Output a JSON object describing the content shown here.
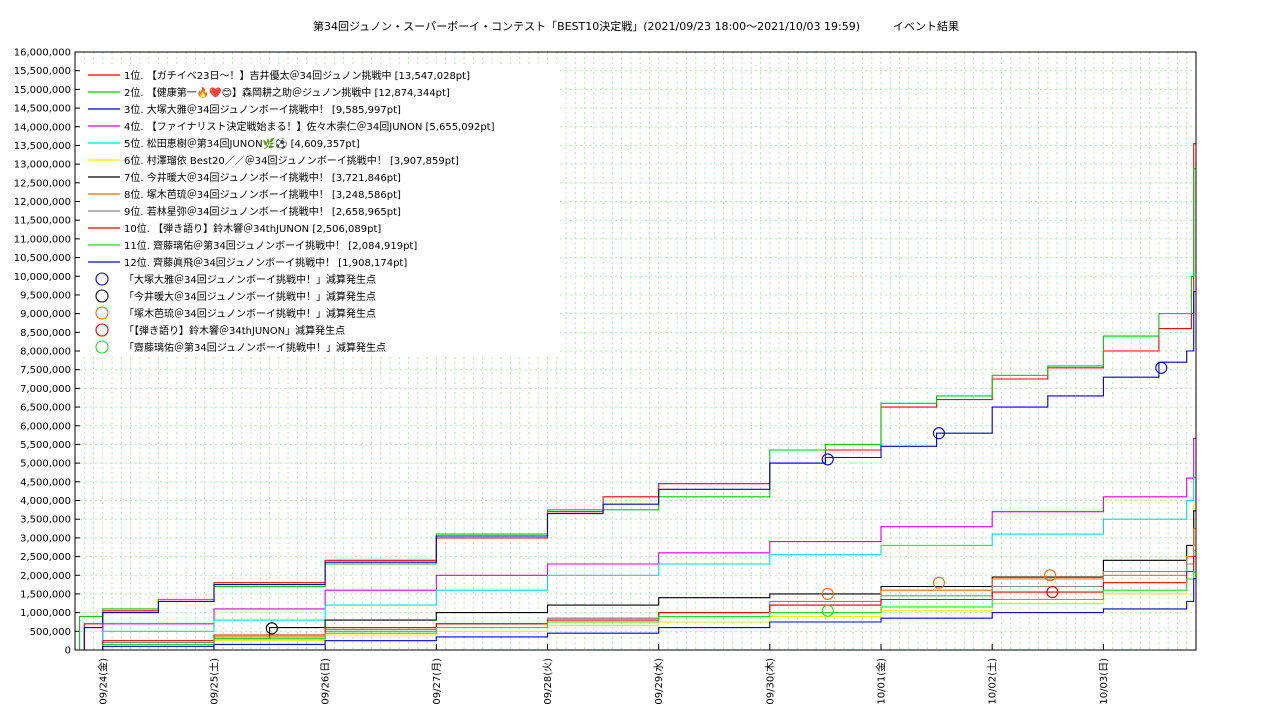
{
  "chart_data": {
    "type": "line",
    "title": "第34回ジュノン・スーパーボーイ・コンテスト「BEST10決定戦」(2021/09/23 18:00〜2021/10/03 19:59)　　　イベント結果",
    "xlabel": "",
    "ylabel": "",
    "x_ticks": [
      "09/24(金)",
      "09/25(土)",
      "09/26(日)",
      "09/27(月)",
      "09/28(火)",
      "09/29(水)",
      "09/30(木)",
      "10/01(金)",
      "10/02(土)",
      "10/03(日)"
    ],
    "xlim": [
      "2021-09-23 18:00",
      "2021-10-03 20:00"
    ],
    "ylim": [
      0,
      16000000
    ],
    "y_ticks": [
      "0",
      "500,000",
      "1,000,000",
      "1,500,000",
      "2,000,000",
      "2,500,000",
      "3,000,000",
      "3,500,000",
      "4,000,000",
      "4,500,000",
      "5,000,000",
      "5,500,000",
      "6,000,000",
      "6,500,000",
      "7,000,000",
      "7,500,000",
      "8,000,000",
      "8,500,000",
      "9,000,000",
      "9,500,000",
      "10,000,000",
      "10,500,000",
      "11,000,000",
      "11,500,000",
      "12,000,000",
      "12,500,000",
      "13,000,000",
      "13,500,000",
      "14,000,000",
      "14,500,000",
      "15,000,000",
      "15,500,000",
      "16,000,000"
    ],
    "grid": true,
    "legend_position": "top-left",
    "series": [
      {
        "name": "1位. 【ガチイベ23日〜！】吉井優太＠34回ジュノン挑戦中 [13,547,028pt]",
        "color": "#ff0000",
        "points": [
          [
            "09/23 18:00",
            0
          ],
          [
            "09/23 20:00",
            700000
          ],
          [
            "09/24 00:00",
            1050000
          ],
          [
            "09/24 12:00",
            1300000
          ],
          [
            "09/25 00:00",
            1800000
          ],
          [
            "09/26 00:00",
            2400000
          ],
          [
            "09/27 00:00",
            3000000
          ],
          [
            "09/28 00:00",
            3700000
          ],
          [
            "09/28 12:00",
            4100000
          ],
          [
            "09/29 00:00",
            4450000
          ],
          [
            "09/30 00:00",
            5000000
          ],
          [
            "09/30 12:00",
            5350000
          ],
          [
            "10/01 00:00",
            6500000
          ],
          [
            "10/01 12:00",
            6700000
          ],
          [
            "10/02 00:00",
            7250000
          ],
          [
            "10/02 12:00",
            7550000
          ],
          [
            "10/03 00:00",
            8000000
          ],
          [
            "10/03 12:00",
            8600000
          ],
          [
            "10/03 19:00",
            9000000
          ],
          [
            "10/03 19:30",
            13547028
          ],
          [
            "10/03 20:00",
            13547028
          ]
        ]
      },
      {
        "name": "2位. 【健康第一🔥❤️😊】森岡耕之助＠ジュノン挑戦中 [12,874,344pt]",
        "color": "#00cc00",
        "points": [
          [
            "09/23 18:00",
            0
          ],
          [
            "09/23 19:00",
            900000
          ],
          [
            "09/24 00:00",
            1100000
          ],
          [
            "09/24 12:00",
            1350000
          ],
          [
            "09/25 00:00",
            1700000
          ],
          [
            "09/26 00:00",
            2300000
          ],
          [
            "09/27 00:00",
            3100000
          ],
          [
            "09/28 00:00",
            3750000
          ],
          [
            "09/29 00:00",
            4100000
          ],
          [
            "09/30 00:00",
            5350000
          ],
          [
            "09/30 12:00",
            5500000
          ],
          [
            "10/01 00:00",
            6600000
          ],
          [
            "10/01 12:00",
            6800000
          ],
          [
            "10/02 00:00",
            7350000
          ],
          [
            "10/02 12:00",
            7600000
          ],
          [
            "10/03 00:00",
            8400000
          ],
          [
            "10/03 12:00",
            9000000
          ],
          [
            "10/03 19:00",
            10000000
          ],
          [
            "10/03 19:30",
            12874344
          ],
          [
            "10/03 20:00",
            12874344
          ]
        ]
      },
      {
        "name": "3位. 大塚大雅＠34回ジュノンボーイ挑戦中！ [9,585,997pt]",
        "color": "#0000cc",
        "points": [
          [
            "09/23 18:00",
            0
          ],
          [
            "09/23 20:00",
            600000
          ],
          [
            "09/24 00:00",
            1000000
          ],
          [
            "09/24 12:00",
            1300000
          ],
          [
            "09/25 00:00",
            1750000
          ],
          [
            "09/26 00:00",
            2350000
          ],
          [
            "09/27 00:00",
            3050000
          ],
          [
            "09/28 00:00",
            3650000
          ],
          [
            "09/28 12:00",
            3900000
          ],
          [
            "09/29 00:00",
            4300000
          ],
          [
            "09/30 00:00",
            5000000
          ],
          [
            "09/30 12:00",
            5150000
          ],
          [
            "10/01 00:00",
            5450000
          ],
          [
            "10/01 12:00",
            5800000
          ],
          [
            "10/02 00:00",
            6500000
          ],
          [
            "10/02 12:00",
            6800000
          ],
          [
            "10/03 00:00",
            7300000
          ],
          [
            "10/03 12:00",
            7700000
          ],
          [
            "10/03 18:00",
            8000000
          ],
          [
            "10/03 19:30",
            9585997
          ],
          [
            "10/03 20:00",
            9585997
          ]
        ]
      },
      {
        "name": "4位. 【ファイナリスト決定戦始まる！】佐々木崇仁＠34回JUNON [5,655,092pt]",
        "color": "#dd00dd",
        "points": [
          [
            "09/23 18:00",
            0
          ],
          [
            "09/24 00:00",
            700000
          ],
          [
            "09/25 00:00",
            1100000
          ],
          [
            "09/26 00:00",
            1600000
          ],
          [
            "09/27 00:00",
            2000000
          ],
          [
            "09/28 00:00",
            2300000
          ],
          [
            "09/29 00:00",
            2600000
          ],
          [
            "09/30 00:00",
            2900000
          ],
          [
            "10/01 00:00",
            3300000
          ],
          [
            "10/02 00:00",
            3700000
          ],
          [
            "10/03 00:00",
            4100000
          ],
          [
            "10/03 18:00",
            4600000
          ],
          [
            "10/03 19:30",
            5655092
          ],
          [
            "10/03 20:00",
            5655092
          ]
        ]
      },
      {
        "name": "5位. 松田恵樹＠第34回JUNON🌿⚽ [4,609,357pt]",
        "color": "#00dddd",
        "points": [
          [
            "09/23 18:00",
            0
          ],
          [
            "09/24 00:00",
            500000
          ],
          [
            "09/25 00:00",
            800000
          ],
          [
            "09/26 00:00",
            1200000
          ],
          [
            "09/27 00:00",
            1600000
          ],
          [
            "09/28 00:00",
            2000000
          ],
          [
            "09/29 00:00",
            2300000
          ],
          [
            "09/30 00:00",
            2550000
          ],
          [
            "10/01 00:00",
            2800000
          ],
          [
            "10/02 00:00",
            3100000
          ],
          [
            "10/03 00:00",
            3500000
          ],
          [
            "10/03 18:00",
            4000000
          ],
          [
            "10/03 19:30",
            4609357
          ],
          [
            "10/03 20:00",
            4609357
          ]
        ]
      },
      {
        "name": "6位. 村澤瑠依 Best20／／＠34回ジュノンボーイ挑戦中！ [3,907,859pt]",
        "color": "#eeee00",
        "points": [
          [
            "09/23 18:00",
            0
          ],
          [
            "09/24 00:00",
            150000
          ],
          [
            "09/25 00:00",
            250000
          ],
          [
            "09/26 00:00",
            400000
          ],
          [
            "09/27 00:00",
            500000
          ],
          [
            "09/28 00:00",
            650000
          ],
          [
            "09/29 00:00",
            750000
          ],
          [
            "09/30 00:00",
            900000
          ],
          [
            "10/01 00:00",
            1050000
          ],
          [
            "10/02 00:00",
            1250000
          ],
          [
            "10/03 00:00",
            1500000
          ],
          [
            "10/03 18:00",
            1900000
          ],
          [
            "10/03 19:30",
            3907859
          ],
          [
            "10/03 20:00",
            3907859
          ]
        ]
      },
      {
        "name": "7位. 今井暖大＠34回ジュノンボーイ挑戦中！ [3,721,846pt]",
        "color": "#000000",
        "points": [
          [
            "09/23 18:00",
            0
          ],
          [
            "09/24 00:00",
            200000
          ],
          [
            "09/25 00:00",
            300000
          ],
          [
            "09/25 12:00",
            600000
          ],
          [
            "09/26 00:00",
            800000
          ],
          [
            "09/27 00:00",
            1000000
          ],
          [
            "09/28 00:00",
            1200000
          ],
          [
            "09/29 00:00",
            1400000
          ],
          [
            "09/30 00:00",
            1500000
          ],
          [
            "10/01 00:00",
            1700000
          ],
          [
            "10/02 00:00",
            1950000
          ],
          [
            "10/03 00:00",
            2400000
          ],
          [
            "10/03 18:00",
            2800000
          ],
          [
            "10/03 19:30",
            3721846
          ],
          [
            "10/03 20:00",
            3721846
          ]
        ]
      },
      {
        "name": "8位. 塚木芭琉＠34回ジュノンボーイ挑戦中！ [3,248,586pt]",
        "color": "#ff6600",
        "points": [
          [
            "09/23 18:00",
            0
          ],
          [
            "09/24 00:00",
            200000
          ],
          [
            "09/25 00:00",
            350000
          ],
          [
            "09/26 00:00",
            550000
          ],
          [
            "09/27 00:00",
            700000
          ],
          [
            "09/28 00:00",
            850000
          ],
          [
            "09/29 00:00",
            1000000
          ],
          [
            "09/30 00:00",
            1300000
          ],
          [
            "10/01 00:00",
            1600000
          ],
          [
            "10/02 00:00",
            1900000
          ],
          [
            "10/03 00:00",
            2100000
          ],
          [
            "10/03 18:00",
            2500000
          ],
          [
            "10/03 19:30",
            3248586
          ],
          [
            "10/03 20:00",
            3248586
          ]
        ]
      },
      {
        "name": "9位. 若林星弥＠34回ジュノンボーイ挑戦中！ [2,658,965pt]",
        "color": "#888888",
        "points": [
          [
            "09/23 18:00",
            0
          ],
          [
            "09/24 00:00",
            200000
          ],
          [
            "09/25 00:00",
            300000
          ],
          [
            "09/26 00:00",
            500000
          ],
          [
            "09/27 00:00",
            700000
          ],
          [
            "09/28 00:00",
            850000
          ],
          [
            "09/29 00:00",
            1000000
          ],
          [
            "09/30 00:00",
            1200000
          ],
          [
            "10/01 00:00",
            1450000
          ],
          [
            "10/02 00:00",
            1700000
          ],
          [
            "10/03 00:00",
            2000000
          ],
          [
            "10/03 18:00",
            2300000
          ],
          [
            "10/03 19:30",
            2658965
          ],
          [
            "10/03 20:00",
            2658965
          ]
        ]
      },
      {
        "name": "10位. 【弾き語り】鈴木響＠34thJUNON [2,506,089pt]",
        "color": "#ee0000",
        "points": [
          [
            "09/23 18:00",
            0
          ],
          [
            "09/24 00:00",
            250000
          ],
          [
            "09/25 00:00",
            400000
          ],
          [
            "09/26 00:00",
            600000
          ],
          [
            "09/27 00:00",
            700000
          ],
          [
            "09/28 00:00",
            800000
          ],
          [
            "09/29 00:00",
            1000000
          ],
          [
            "09/30 00:00",
            1200000
          ],
          [
            "10/01 00:00",
            1350000
          ],
          [
            "10/02 00:00",
            1550000
          ],
          [
            "10/03 00:00",
            1800000
          ],
          [
            "10/03 18:00",
            2100000
          ],
          [
            "10/03 19:30",
            2506089
          ],
          [
            "10/03 20:00",
            2506089
          ]
        ]
      },
      {
        "name": "11位. 齋藤璃佑＠第34回ジュノンボーイ挑戦中！ [2,084,919pt]",
        "color": "#22dd22",
        "points": [
          [
            "09/23 18:00",
            0
          ],
          [
            "09/24 00:00",
            150000
          ],
          [
            "09/25 00:00",
            300000
          ],
          [
            "09/26 00:00",
            450000
          ],
          [
            "09/27 00:00",
            600000
          ],
          [
            "09/28 00:00",
            750000
          ],
          [
            "09/29 00:00",
            900000
          ],
          [
            "09/30 00:00",
            1000000
          ],
          [
            "10/01 00:00",
            1150000
          ],
          [
            "10/02 00:00",
            1350000
          ],
          [
            "10/03 00:00",
            1600000
          ],
          [
            "10/03 18:00",
            1900000
          ],
          [
            "10/03 19:30",
            2084919
          ],
          [
            "10/03 20:00",
            2084919
          ]
        ]
      },
      {
        "name": "12位. 齊藤眞飛＠34回ジュノンボーイ挑戦中！ [1,908,174pt]",
        "color": "#0000ee",
        "points": [
          [
            "09/23 18:00",
            0
          ],
          [
            "09/24 00:00",
            100000
          ],
          [
            "09/25 00:00",
            150000
          ],
          [
            "09/26 00:00",
            250000
          ],
          [
            "09/27 00:00",
            350000
          ],
          [
            "09/28 00:00",
            450000
          ],
          [
            "09/29 00:00",
            600000
          ],
          [
            "09/30 00:00",
            750000
          ],
          [
            "10/01 00:00",
            850000
          ],
          [
            "10/02 00:00",
            1000000
          ],
          [
            "10/03 00:00",
            1100000
          ],
          [
            "10/03 18:00",
            1300000
          ],
          [
            "10/03 19:30",
            1908174
          ],
          [
            "10/03 20:00",
            1908174
          ]
        ]
      }
    ],
    "markers": [
      {
        "name": "「大塚大雅＠34回ジュノンボーイ挑戦中！」減算発生点",
        "color": "#0000cc",
        "points": [
          [
            "09/30 12:30",
            5100000
          ],
          [
            "10/01 12:30",
            5800000
          ],
          [
            "10/03 12:30",
            7550000
          ]
        ]
      },
      {
        "name": "「今井暖大＠34回ジュノンボーイ挑戦中！」減算発生点",
        "color": "#000000",
        "points": [
          [
            "09/25 12:30",
            580000
          ]
        ]
      },
      {
        "name": "「塚木芭琉＠34回ジュノンボーイ挑戦中！」減算発生点",
        "color": "#ff6600",
        "points": [
          [
            "09/30 12:30",
            1500000
          ],
          [
            "10/01 12:30",
            1800000
          ],
          [
            "10/02 12:30",
            2000000
          ]
        ]
      },
      {
        "name": "「【弾き語り】鈴木響＠34thJUNON」減算発生点",
        "color": "#ee0000",
        "points": [
          [
            "10/02 13:00",
            1550000
          ]
        ]
      },
      {
        "name": "「齋藤璃佑＠第34回ジュノンボーイ挑戦中！」減算発生点",
        "color": "#22dd22",
        "points": [
          [
            "09/30 12:30",
            1050000
          ]
        ]
      }
    ]
  }
}
